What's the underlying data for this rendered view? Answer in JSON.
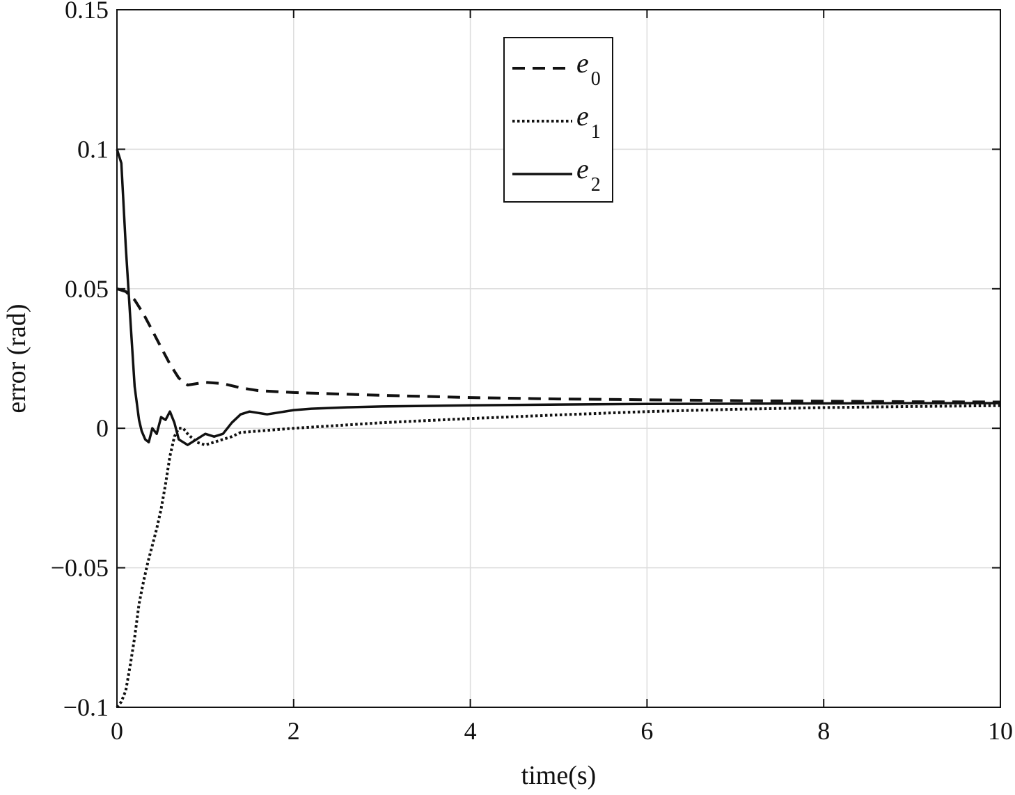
{
  "chart_data": {
    "type": "line",
    "xlabel": "time(s)",
    "ylabel": "error (rad)",
    "xlim": [
      0,
      10
    ],
    "ylim": [
      -0.1,
      0.15
    ],
    "xticks": [
      0,
      2,
      4,
      6,
      8,
      10
    ],
    "xtick_labels": [
      "0",
      "2",
      "4",
      "6",
      "8",
      "10"
    ],
    "yticks": [
      -0.1,
      -0.05,
      0,
      0.05,
      0.1,
      0.15
    ],
    "ytick_labels": [
      "−0.1",
      "−0.05",
      "0",
      "0.05",
      "0.1",
      "0.15"
    ],
    "grid": true,
    "legend_position": "top-center",
    "series": [
      {
        "name": "e",
        "subscript": "0",
        "style": "dashed",
        "color": "#111111",
        "x": [
          0,
          0.1,
          0.2,
          0.3,
          0.4,
          0.5,
          0.6,
          0.7,
          0.8,
          0.9,
          1.0,
          1.2,
          1.4,
          1.6,
          2.0,
          3.0,
          4.0,
          5.0,
          6.0,
          7.0,
          8.0,
          9.0,
          10.0
        ],
        "y": [
          0.05,
          0.049,
          0.046,
          0.041,
          0.035,
          0.029,
          0.023,
          0.018,
          0.0155,
          0.016,
          0.0165,
          0.016,
          0.0145,
          0.0135,
          0.0128,
          0.0118,
          0.011,
          0.0105,
          0.0102,
          0.0099,
          0.0097,
          0.0095,
          0.0094
        ]
      },
      {
        "name": "e",
        "subscript": "1",
        "style": "dotted",
        "color": "#111111",
        "x": [
          0,
          0.05,
          0.1,
          0.15,
          0.2,
          0.25,
          0.3,
          0.35,
          0.4,
          0.45,
          0.5,
          0.55,
          0.6,
          0.65,
          0.7,
          0.75,
          0.8,
          0.9,
          1.0,
          1.1,
          1.2,
          1.3,
          1.4,
          1.6,
          1.8,
          2.0,
          2.5,
          3.0,
          4.0,
          5.0,
          6.0,
          7.0,
          8.0,
          9.0,
          10.0
        ],
        "y": [
          -0.1,
          -0.098,
          -0.094,
          -0.085,
          -0.075,
          -0.063,
          -0.055,
          -0.048,
          -0.042,
          -0.036,
          -0.029,
          -0.02,
          -0.01,
          -0.003,
          0.0,
          0.0,
          -0.002,
          -0.005,
          -0.006,
          -0.005,
          -0.004,
          -0.003,
          -0.0015,
          -0.001,
          -0.0005,
          0.0,
          0.001,
          0.002,
          0.0035,
          0.0048,
          0.006,
          0.0068,
          0.0074,
          0.0078,
          0.0081
        ]
      },
      {
        "name": "e",
        "subscript": "2",
        "style": "solid",
        "color": "#111111",
        "x": [
          0,
          0.05,
          0.1,
          0.15,
          0.2,
          0.25,
          0.28,
          0.32,
          0.36,
          0.4,
          0.45,
          0.5,
          0.55,
          0.6,
          0.65,
          0.7,
          0.75,
          0.8,
          0.9,
          1.0,
          1.1,
          1.2,
          1.3,
          1.4,
          1.5,
          1.6,
          1.7,
          1.8,
          2.0,
          2.2,
          2.6,
          3.0,
          4.0,
          5.0,
          6.0,
          7.0,
          8.0,
          9.0,
          10.0
        ],
        "y": [
          0.1,
          0.095,
          0.065,
          0.04,
          0.015,
          0.003,
          -0.001,
          -0.004,
          -0.005,
          0.0,
          -0.002,
          0.004,
          0.003,
          0.006,
          0.002,
          -0.004,
          -0.005,
          -0.006,
          -0.004,
          -0.002,
          -0.003,
          -0.002,
          0.002,
          0.005,
          0.006,
          0.0055,
          0.005,
          0.0055,
          0.0065,
          0.007,
          0.0075,
          0.0078,
          0.0082,
          0.0085,
          0.0087,
          0.0088,
          0.0089,
          0.009,
          0.009
        ]
      }
    ]
  }
}
